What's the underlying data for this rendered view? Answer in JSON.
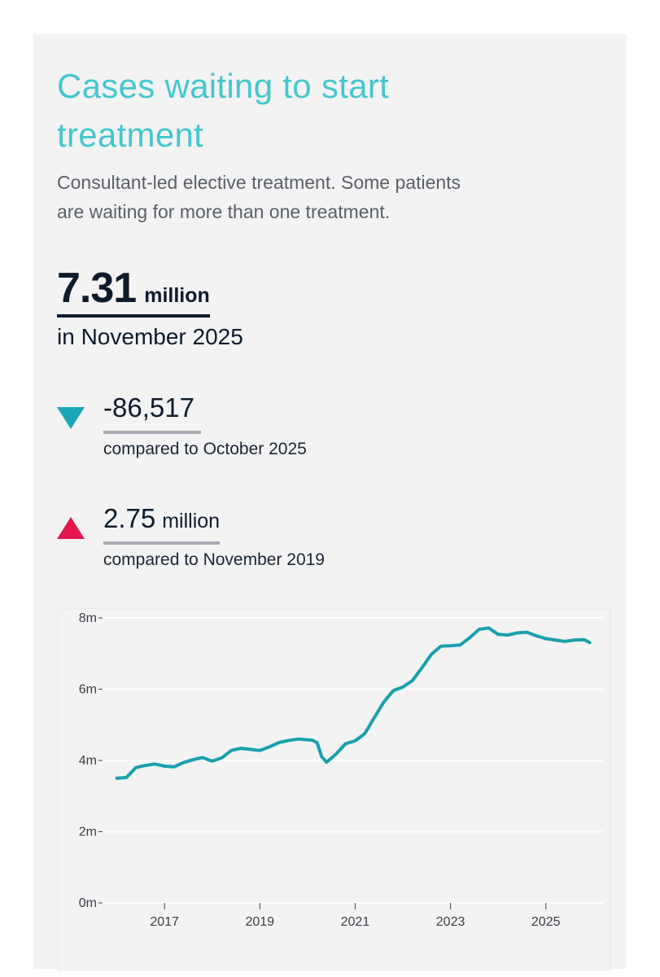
{
  "card": {
    "title": "Cases waiting to start treatment",
    "subtitle": "Consultant-led elective treatment. Some patients are waiting for more than one treatment.",
    "headline": {
      "value": "7.31",
      "unit": "million",
      "period": "in November 2025"
    },
    "comparisons": [
      {
        "direction": "down",
        "color": "#1aa8b8",
        "value": "-86,517",
        "unit": "",
        "label": "compared to October 2025"
      },
      {
        "direction": "up",
        "color": "#e4174d",
        "value": "2.75",
        "unit": "million",
        "label": "compared to November 2019"
      }
    ]
  },
  "colors": {
    "title": "#44c7cf",
    "line": "#1aa0ad",
    "up": "#e4174d",
    "down": "#1aa8b8"
  },
  "chart_data": {
    "type": "line",
    "title": "",
    "xlabel": "",
    "ylabel": "",
    "ylim": [
      0,
      8
    ],
    "yticks": [
      {
        "value": 0,
        "label": "0m"
      },
      {
        "value": 2,
        "label": "2m"
      },
      {
        "value": 4,
        "label": "4m"
      },
      {
        "value": 6,
        "label": "6m"
      },
      {
        "value": 8,
        "label": "8m"
      }
    ],
    "xticks": [
      {
        "value": 2017,
        "label": "2017"
      },
      {
        "value": 2019,
        "label": "2019"
      },
      {
        "value": 2021,
        "label": "2021"
      },
      {
        "value": 2023,
        "label": "2023"
      },
      {
        "value": 2025,
        "label": "2025"
      }
    ],
    "xlim": [
      2015.7,
      2026.2
    ],
    "grid": true,
    "series": [
      {
        "name": "",
        "x": [
          2016.0,
          2016.2,
          2016.4,
          2016.6,
          2016.8,
          2017.0,
          2017.2,
          2017.4,
          2017.6,
          2017.8,
          2018.0,
          2018.2,
          2018.4,
          2018.6,
          2018.8,
          2019.0,
          2019.2,
          2019.4,
          2019.6,
          2019.8,
          2020.0,
          2020.1,
          2020.2,
          2020.3,
          2020.4,
          2020.6,
          2020.8,
          2021.0,
          2021.2,
          2021.4,
          2021.6,
          2021.8,
          2022.0,
          2022.2,
          2022.4,
          2022.6,
          2022.8,
          2023.0,
          2023.2,
          2023.4,
          2023.6,
          2023.8,
          2024.0,
          2024.2,
          2024.4,
          2024.6,
          2024.8,
          2025.0,
          2025.2,
          2025.4,
          2025.6,
          2025.8,
          2025.92
        ],
        "values": [
          3.5,
          3.52,
          3.8,
          3.86,
          3.9,
          3.84,
          3.82,
          3.94,
          4.02,
          4.08,
          3.98,
          4.07,
          4.28,
          4.34,
          4.31,
          4.28,
          4.38,
          4.5,
          4.56,
          4.6,
          4.58,
          4.57,
          4.5,
          4.1,
          3.95,
          4.18,
          4.47,
          4.55,
          4.75,
          5.2,
          5.64,
          5.96,
          6.06,
          6.24,
          6.6,
          6.98,
          7.21,
          7.22,
          7.24,
          7.44,
          7.68,
          7.72,
          7.54,
          7.52,
          7.58,
          7.6,
          7.5,
          7.42,
          7.38,
          7.34,
          7.38,
          7.39,
          7.31
        ]
      }
    ]
  }
}
